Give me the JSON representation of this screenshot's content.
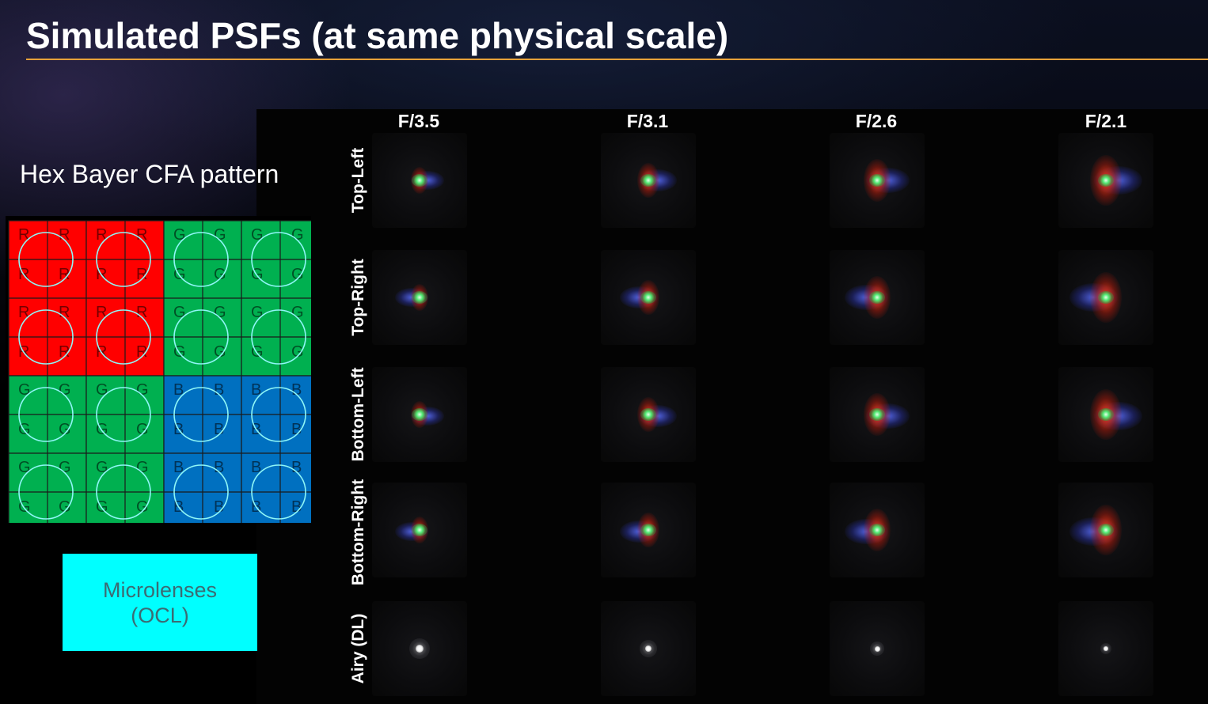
{
  "title": "Simulated PSFs (at same physical scale)",
  "cfa": {
    "label": "Hex Bayer CFA pattern",
    "blocks": [
      [
        "R",
        "R",
        "G",
        "G"
      ],
      [
        "R",
        "R",
        "G",
        "G"
      ],
      [
        "G",
        "G",
        "B",
        "B"
      ],
      [
        "G",
        "G",
        "B",
        "B"
      ]
    ],
    "colors": {
      "R": "#ff0000",
      "G": "#00b050",
      "B": "#0070c0"
    },
    "grid_line_color": "#1a1a1a",
    "microlens_color": "#8ff6f6"
  },
  "ocl": {
    "line1": "Microlenses",
    "line2": "(OCL)",
    "color": "#00ffff"
  },
  "columns": [
    "F/3.5",
    "F/3.1",
    "F/2.6",
    "F/2.1"
  ],
  "rows": [
    "Top-Left",
    "Top-Right",
    "Bottom-Left",
    "Bottom-Right",
    "Airy (DL)"
  ],
  "accent_color": "#e6a13a"
}
